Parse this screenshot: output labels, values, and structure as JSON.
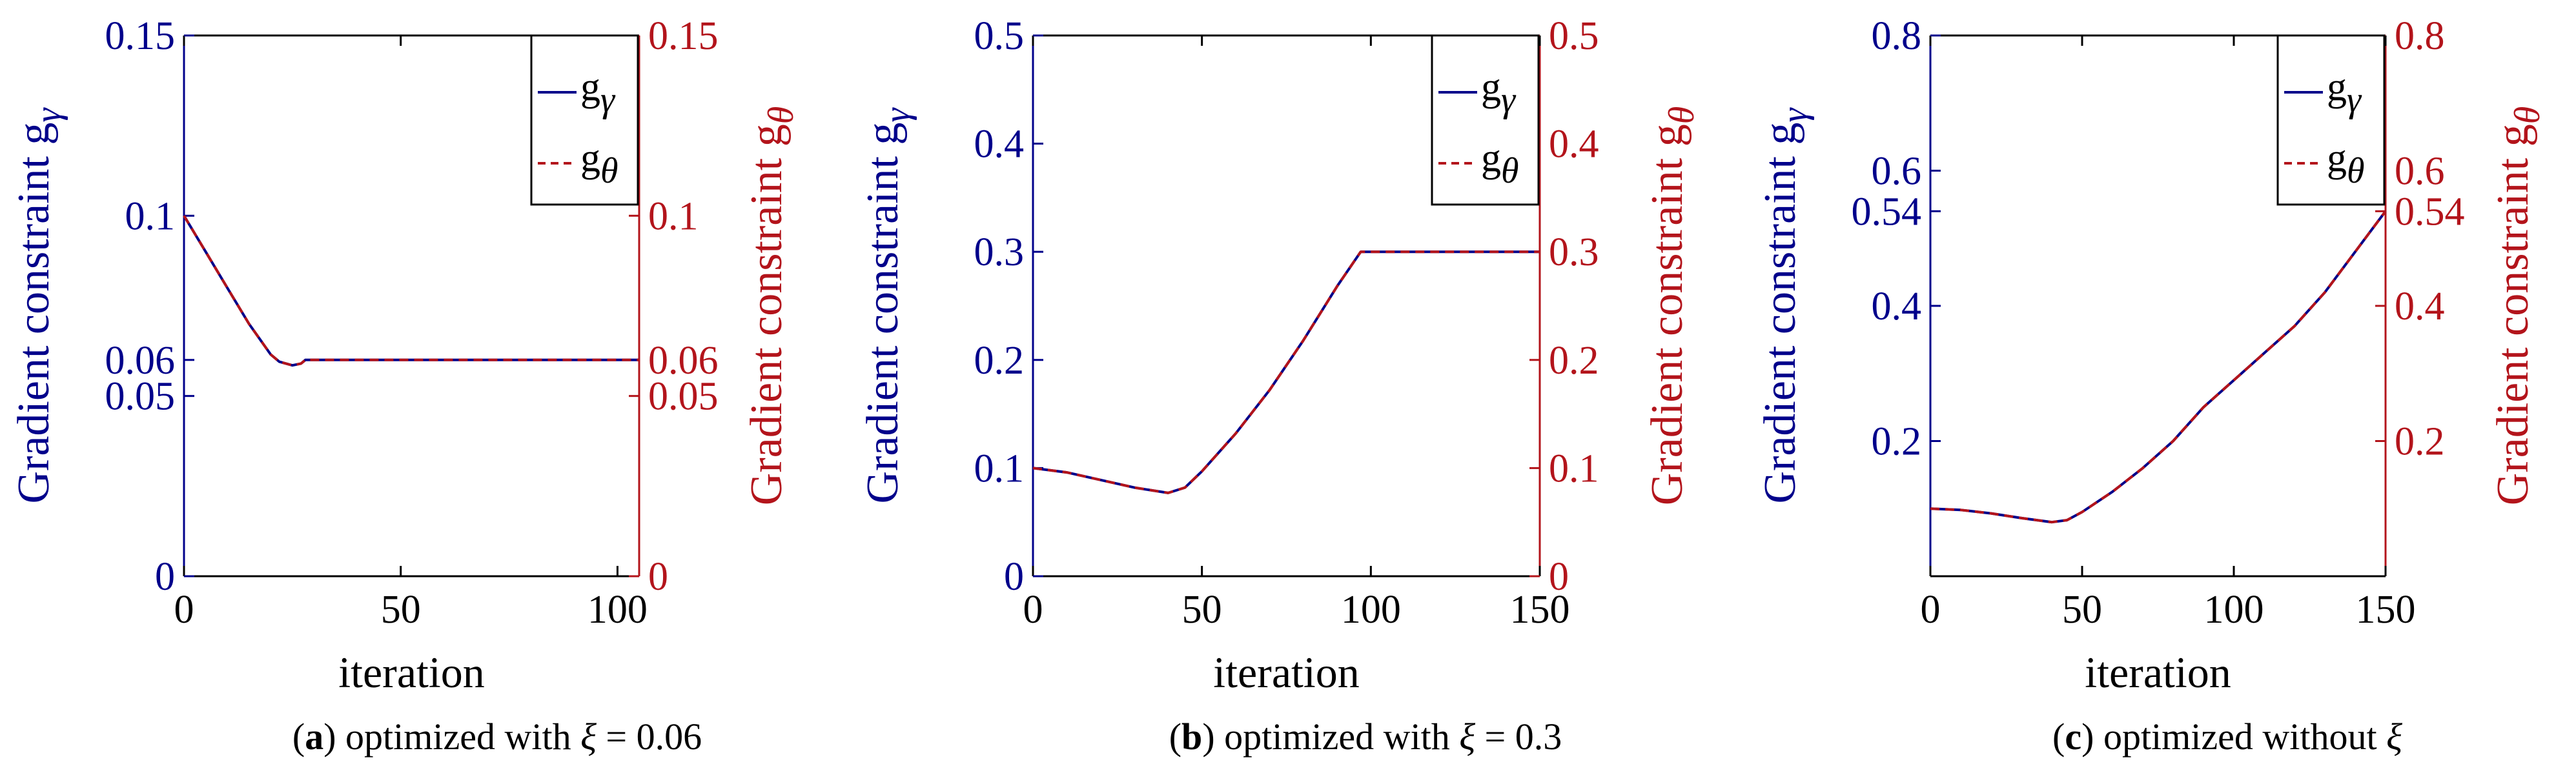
{
  "figure": {
    "colors": {
      "gamma": "#00008b",
      "theta": "#b3141b",
      "axis": "#000000"
    },
    "panels": [
      {
        "id": "a",
        "caption": {
          "letter": "a",
          "text": "optimized with",
          "symbol": "ξ",
          "relation": "= 0.06"
        },
        "xlabel": "iteration",
        "ylabel_left": "Gradient constraint g",
        "ylabel_left_sub": "γ",
        "ylabel_right": "Gradient constraint g",
        "ylabel_right_sub": "θ"
      },
      {
        "id": "b",
        "caption": {
          "letter": "b",
          "text": "optimized with",
          "symbol": "ξ",
          "relation": "= 0.3"
        },
        "xlabel": "iteration",
        "ylabel_left": "Gradient constraint g",
        "ylabel_left_sub": "γ",
        "ylabel_right": "Gradient constraint g",
        "ylabel_right_sub": "θ"
      },
      {
        "id": "c",
        "caption": {
          "letter": "c",
          "text": "optimized without",
          "symbol": "ξ",
          "relation": ""
        },
        "xlabel": "iteration",
        "ylabel_left": "Gradient constraint g",
        "ylabel_left_sub": "γ",
        "ylabel_right": "Gradient constraint g",
        "ylabel_right_sub": "θ"
      }
    ]
  },
  "chart_data": [
    {
      "type": "line",
      "title": "optimized with ξ = 0.06",
      "xlabel": "iteration",
      "ylabel": "Gradient constraint gγ",
      "ylabel_right": "Gradient constraint gθ",
      "xlim": [
        0,
        105
      ],
      "ylim": [
        0,
        0.15
      ],
      "xticks": [
        0,
        50,
        100
      ],
      "xtick_labels": [
        "0",
        "50",
        "100"
      ],
      "yticks": [
        0,
        0.05,
        0.06,
        0.1,
        0.15
      ],
      "ytick_labels": [
        "0",
        "0.05",
        "0.06",
        "0.1",
        "0.15"
      ],
      "legend": {
        "position": "top-right",
        "entries": [
          "gγ",
          "gθ"
        ]
      },
      "series": [
        {
          "name": "gγ",
          "axis": "left",
          "style": "solid",
          "x": [
            0,
            5,
            10,
            15,
            20,
            22,
            25,
            27,
            28,
            30,
            40,
            60,
            80,
            100,
            105
          ],
          "y": [
            0.1,
            0.09,
            0.08,
            0.07,
            0.0615,
            0.0595,
            0.0585,
            0.059,
            0.06,
            0.06,
            0.06,
            0.06,
            0.06,
            0.06,
            0.06
          ]
        },
        {
          "name": "gθ",
          "axis": "right",
          "style": "dashed",
          "x": [
            0,
            5,
            10,
            15,
            20,
            22,
            25,
            27,
            28,
            30,
            40,
            60,
            80,
            100,
            105
          ],
          "y": [
            0.1,
            0.09,
            0.08,
            0.07,
            0.0615,
            0.0595,
            0.0585,
            0.059,
            0.06,
            0.06,
            0.06,
            0.06,
            0.06,
            0.06,
            0.06
          ]
        }
      ]
    },
    {
      "type": "line",
      "title": "optimized with ξ = 0.3",
      "xlabel": "iteration",
      "ylabel": "Gradient constraint gγ",
      "ylabel_right": "Gradient constraint gθ",
      "xlim": [
        0,
        150
      ],
      "ylim": [
        0,
        0.5
      ],
      "xticks": [
        0,
        50,
        100,
        150
      ],
      "xtick_labels": [
        "0",
        "50",
        "100",
        "150"
      ],
      "yticks": [
        0,
        0.1,
        0.2,
        0.3,
        0.4,
        0.5
      ],
      "ytick_labels": [
        "0",
        "0.1",
        "0.2",
        "0.3",
        "0.4",
        "0.5"
      ],
      "legend": {
        "position": "top-right",
        "entries": [
          "gγ",
          "gθ"
        ]
      },
      "series": [
        {
          "name": "gγ",
          "axis": "left",
          "style": "solid",
          "x": [
            0,
            10,
            20,
            30,
            40,
            45,
            50,
            60,
            70,
            80,
            90,
            97,
            100,
            120,
            150
          ],
          "y": [
            0.1,
            0.096,
            0.089,
            0.082,
            0.077,
            0.082,
            0.097,
            0.132,
            0.172,
            0.218,
            0.268,
            0.3,
            0.3,
            0.3,
            0.3
          ]
        },
        {
          "name": "gθ",
          "axis": "right",
          "style": "dashed",
          "x": [
            0,
            10,
            20,
            30,
            40,
            45,
            50,
            60,
            70,
            80,
            90,
            97,
            100,
            120,
            150
          ],
          "y": [
            0.1,
            0.096,
            0.089,
            0.082,
            0.077,
            0.082,
            0.097,
            0.132,
            0.172,
            0.218,
            0.268,
            0.3,
            0.3,
            0.3,
            0.3
          ]
        }
      ]
    },
    {
      "type": "line",
      "title": "optimized without ξ",
      "xlabel": "iteration",
      "ylabel": "Gradient constraint gγ",
      "ylabel_right": "Gradient constraint gθ",
      "xlim": [
        0,
        150
      ],
      "ylim": [
        0,
        0.8
      ],
      "xticks": [
        0,
        50,
        100,
        150
      ],
      "xtick_labels": [
        "0",
        "50",
        "100",
        "150"
      ],
      "yticks": [
        0.2,
        0.4,
        0.54,
        0.6,
        0.8
      ],
      "ytick_labels": [
        "0.2",
        "0.4",
        "0.54",
        "0.6",
        "0.8"
      ],
      "legend": {
        "position": "top-right",
        "entries": [
          "gγ",
          "gθ"
        ]
      },
      "series": [
        {
          "name": "gγ",
          "axis": "left",
          "style": "solid",
          "x": [
            0,
            10,
            20,
            30,
            40,
            45,
            50,
            60,
            70,
            80,
            90,
            100,
            110,
            120,
            130,
            140,
            150
          ],
          "y": [
            0.1,
            0.098,
            0.093,
            0.086,
            0.08,
            0.083,
            0.095,
            0.125,
            0.16,
            0.2,
            0.25,
            0.29,
            0.33,
            0.37,
            0.42,
            0.48,
            0.54
          ]
        },
        {
          "name": "gθ",
          "axis": "right",
          "style": "dashed",
          "x": [
            0,
            10,
            20,
            30,
            40,
            45,
            50,
            60,
            70,
            80,
            90,
            100,
            110,
            120,
            130,
            140,
            150
          ],
          "y": [
            0.1,
            0.098,
            0.093,
            0.086,
            0.08,
            0.083,
            0.095,
            0.125,
            0.16,
            0.2,
            0.25,
            0.29,
            0.33,
            0.37,
            0.42,
            0.48,
            0.54
          ]
        }
      ]
    }
  ]
}
